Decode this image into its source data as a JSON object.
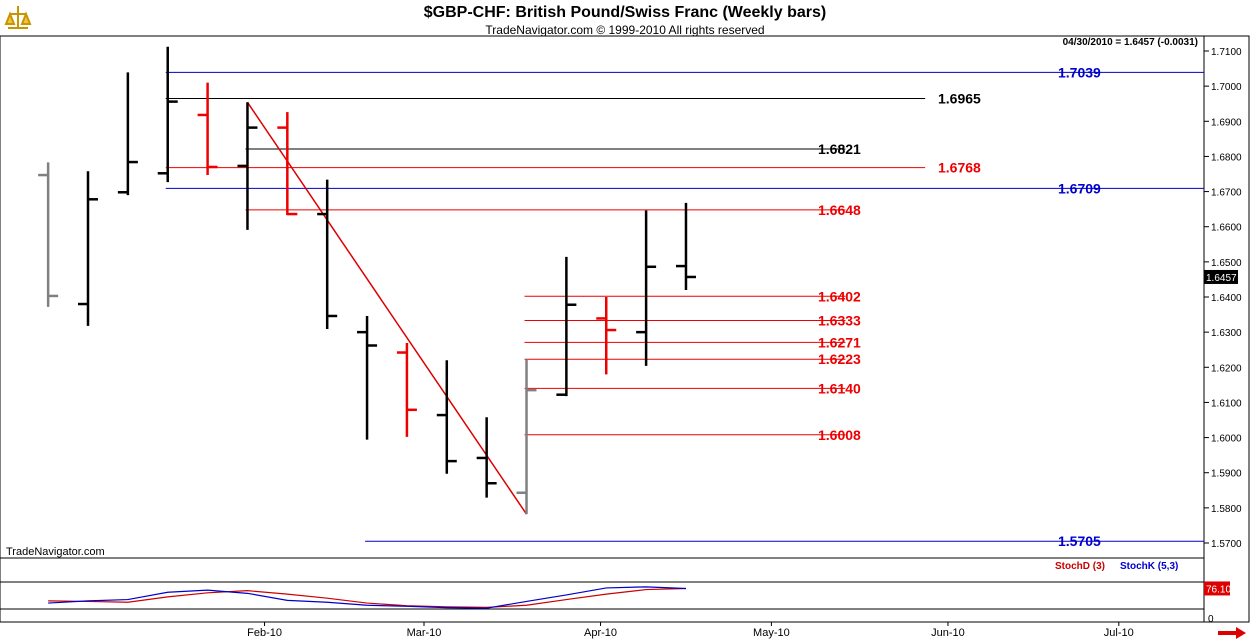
{
  "header": {
    "title": "$GBP-CHF:  British Pound/Swiss Franc  (Weekly bars)",
    "copyright": "TradeNavigator.com © 1999-2010 All rights reserved",
    "quote": "04/30/2010 = 1.6457 (-0.0031)",
    "watermark": "TradeNavigator.com"
  },
  "colors": {
    "up_bar": "#000000",
    "down_bar": "#ee0000",
    "neutral_bar": "#808080",
    "support_level": "#0000cc",
    "resistance_level": "#000000",
    "fib_level": "#ee0000",
    "trendline": "#dd0000",
    "stoch_d": "#cc0000",
    "stoch_k": "#0000cc"
  },
  "chart_data": {
    "type": "ohlc",
    "title": "$GBP-CHF:  British Pound/Swiss Franc  (Weekly bars)",
    "y_range": [
      1.565,
      1.713
    ],
    "y_ticks": [
      "1.7100",
      "1.7000",
      "1.6900",
      "1.6800",
      "1.6700",
      "1.6600",
      "1.6500",
      "1.6400",
      "1.6300",
      "1.6200",
      "1.6100",
      "1.6000",
      "1.5900",
      "1.5800",
      "1.5700"
    ],
    "x_ticks": [
      "Feb-10",
      "Mar-10",
      "Apr-10",
      "May-10",
      "Jun-10",
      "Jul-10"
    ],
    "last_price_label": "1.6457",
    "bars": [
      {
        "week": "2009-12-25",
        "open": 1.6747,
        "high": 1.6783,
        "low": 1.6372,
        "close": 1.6403,
        "color": "neutral"
      },
      {
        "week": "2010-01-01",
        "open": 1.638,
        "high": 1.6758,
        "low": 1.6318,
        "close": 1.6678,
        "color": "up"
      },
      {
        "week": "2010-01-08",
        "open": 1.6698,
        "high": 1.7039,
        "low": 1.669,
        "close": 1.6784,
        "color": "up"
      },
      {
        "week": "2010-01-15",
        "open": 1.6752,
        "high": 1.7112,
        "low": 1.6727,
        "close": 1.6956,
        "color": "up"
      },
      {
        "week": "2010-01-22",
        "open": 1.6918,
        "high": 1.701,
        "low": 1.6747,
        "close": 1.677,
        "color": "down"
      },
      {
        "week": "2010-01-29",
        "open": 1.6773,
        "high": 1.6954,
        "low": 1.6591,
        "close": 1.6882,
        "color": "up"
      },
      {
        "week": "2010-02-05",
        "open": 1.6882,
        "high": 1.6926,
        "low": 1.6633,
        "close": 1.6636,
        "color": "down"
      },
      {
        "week": "2010-02-12",
        "open": 1.6636,
        "high": 1.6734,
        "low": 1.6309,
        "close": 1.6346,
        "color": "up"
      },
      {
        "week": "2010-02-19",
        "open": 1.63,
        "high": 1.6346,
        "low": 1.5994,
        "close": 1.6262,
        "color": "up"
      },
      {
        "week": "2010-02-26",
        "open": 1.6242,
        "high": 1.6269,
        "low": 1.6002,
        "close": 1.6079,
        "color": "down"
      },
      {
        "week": "2010-03-05",
        "open": 1.6064,
        "high": 1.622,
        "low": 1.5897,
        "close": 1.5933,
        "color": "up"
      },
      {
        "week": "2010-03-12",
        "open": 1.5942,
        "high": 1.6058,
        "low": 1.5829,
        "close": 1.587,
        "color": "up"
      },
      {
        "week": "2010-03-19",
        "open": 1.5843,
        "high": 1.6223,
        "low": 1.5782,
        "close": 1.6135,
        "color": "neutral"
      },
      {
        "week": "2010-03-26",
        "open": 1.6122,
        "high": 1.6514,
        "low": 1.6118,
        "close": 1.6378,
        "color": "up"
      },
      {
        "week": "2010-04-02",
        "open": 1.6339,
        "high": 1.64,
        "low": 1.618,
        "close": 1.6306,
        "color": "down"
      },
      {
        "week": "2010-04-09",
        "open": 1.63,
        "high": 1.6646,
        "low": 1.6204,
        "close": 1.6486,
        "color": "up"
      },
      {
        "week": "2010-04-16",
        "open": 1.6488,
        "high": 1.6668,
        "low": 1.642,
        "close": 1.6457,
        "color": "up"
      }
    ],
    "horizontal_levels": [
      {
        "label": "1.7039",
        "kind": "support_level"
      },
      {
        "label": "1.6965",
        "kind": "resistance_level"
      },
      {
        "label": "1.6821",
        "kind": "resistance_level"
      },
      {
        "label": "1.6768",
        "kind": "fib_level"
      },
      {
        "label": "1.6709",
        "kind": "support_level"
      },
      {
        "label": "1.6648",
        "kind": "fib_level"
      },
      {
        "label": "1.6402",
        "kind": "fib_level"
      },
      {
        "label": "1.6333",
        "kind": "fib_level"
      },
      {
        "label": "1.6271",
        "kind": "fib_level"
      },
      {
        "label": "1.6223",
        "kind": "fib_level"
      },
      {
        "label": "1.6140",
        "kind": "fib_level"
      },
      {
        "label": "1.6008",
        "kind": "fib_level"
      },
      {
        "label": "1.5705",
        "kind": "support_level"
      }
    ],
    "trendline": {
      "from": {
        "week": "2010-01-29",
        "price": 1.6954
      },
      "to": {
        "week": "2010-03-19",
        "price": 1.5782
      }
    },
    "stochastic": {
      "labels": {
        "d": "StochD (3)",
        "k": "StochK (5,3)"
      },
      "last_value_label": "76.10",
      "zero_label": "0",
      "d_series": [
        30,
        28,
        25,
        45,
        60,
        68,
        55,
        40,
        22,
        12,
        8,
        6,
        14,
        35,
        55,
        72,
        76
      ],
      "k_series": [
        22,
        30,
        35,
        62,
        70,
        58,
        32,
        25,
        14,
        10,
        5,
        3,
        28,
        52,
        78,
        82,
        76
      ]
    }
  }
}
